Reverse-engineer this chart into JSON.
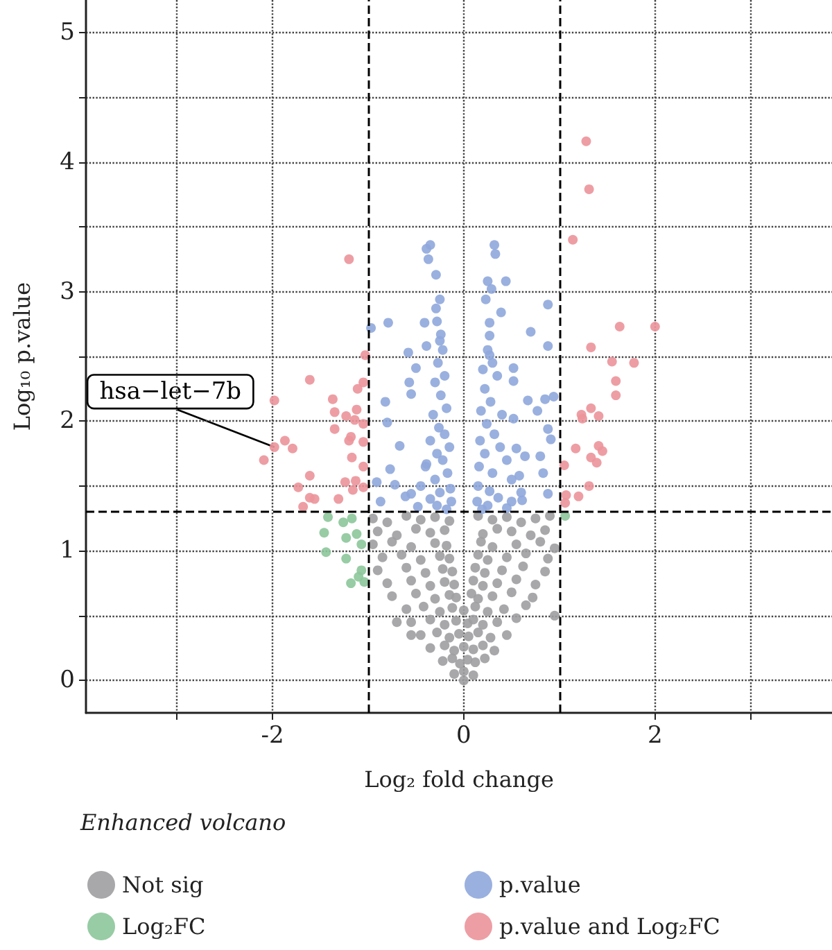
{
  "chart_data": {
    "type": "scatter",
    "xlabel": "Log₂ fold change",
    "ylabel": "Log₁₀ p.value",
    "legend_title": "Enhanced volcano",
    "legend": "bottom",
    "marker": "circle",
    "grid": true,
    "xlim": [
      -3.95,
      3.85
    ],
    "ylim": [
      -0.25,
      5.25
    ],
    "xticks": [
      {
        "value": -3,
        "label": null
      },
      -2,
      0,
      2,
      {
        "value": 3,
        "label": null
      }
    ],
    "yticks": [
      0,
      {
        "value": 0.5,
        "label": null
      },
      1,
      {
        "value": 1.5,
        "label": null
      },
      2,
      {
        "value": 2.5,
        "label": null
      },
      3,
      {
        "value": 3.5,
        "label": null
      },
      4,
      {
        "value": 4.5,
        "label": null
      },
      5
    ],
    "ref_lines": [
      {
        "axis": "x",
        "value": -1,
        "line_style": "dashed",
        "color": "#000000"
      },
      {
        "axis": "x",
        "value": 1,
        "line_style": "dashed",
        "color": "#000000"
      },
      {
        "axis": "y",
        "value": 1.3,
        "line_style": "dashed",
        "color": "#000000"
      }
    ],
    "annotations": [
      {
        "text": "hsa−let−7b",
        "x": -1.98,
        "y": 1.8
      }
    ],
    "series": [
      {
        "name": "Not sig",
        "color": "#9e9ea2",
        "x": [
          -0.95,
          -0.8,
          -0.6,
          -0.45,
          -0.3,
          -0.15,
          0.15,
          0.3,
          0.45,
          0.6,
          0.75,
          0.9,
          -0.9,
          -0.7,
          -0.5,
          -0.35,
          -0.2,
          0.2,
          0.35,
          0.5,
          0.7,
          0.85,
          -0.95,
          -0.75,
          -0.55,
          -0.3,
          -0.18,
          0.18,
          0.3,
          0.55,
          0.8,
          0.95,
          -0.85,
          -0.65,
          -0.45,
          -0.25,
          -0.15,
          0.15,
          0.25,
          0.45,
          0.65,
          0.88,
          -0.9,
          -0.6,
          -0.4,
          -0.22,
          -0.12,
          0.12,
          0.22,
          0.4,
          0.62,
          0.85,
          -0.8,
          -0.55,
          -0.35,
          -0.2,
          -0.1,
          0.1,
          0.2,
          0.35,
          0.55,
          0.75,
          -0.75,
          -0.5,
          -0.3,
          -0.15,
          -0.08,
          0.08,
          0.15,
          0.3,
          0.5,
          0.72,
          -0.6,
          -0.42,
          -0.25,
          -0.12,
          0,
          0.12,
          0.25,
          0.42,
          0.65,
          -0.55,
          -0.35,
          -0.2,
          -0.08,
          0.04,
          0.1,
          0.2,
          0.35,
          0.55,
          -0.45,
          -0.28,
          -0.15,
          -0.05,
          0.05,
          0.15,
          0.28,
          0.45,
          -0.35,
          -0.2,
          -0.1,
          0,
          0.1,
          0.2,
          0.32,
          -0.22,
          -0.12,
          -0.04,
          0.04,
          0.12,
          0.22,
          -0.1,
          0,
          0.1,
          0,
          0.95,
          -0.7,
          -0.55
        ],
        "values": [
          1.25,
          1.22,
          1.27,
          1.24,
          1.26,
          1.23,
          1.27,
          1.24,
          1.26,
          1.22,
          1.25,
          1.27,
          1.15,
          1.12,
          1.17,
          1.14,
          1.16,
          1.13,
          1.17,
          1.15,
          1.12,
          1.16,
          1.05,
          1.07,
          1.03,
          1.06,
          1.04,
          1.07,
          1.03,
          1.05,
          1.07,
          1.02,
          0.95,
          0.97,
          0.93,
          0.96,
          0.94,
          0.97,
          0.93,
          0.95,
          0.98,
          0.94,
          0.85,
          0.87,
          0.83,
          0.86,
          0.84,
          0.87,
          0.83,
          0.85,
          0.88,
          0.84,
          0.75,
          0.77,
          0.73,
          0.76,
          0.74,
          0.77,
          0.73,
          0.75,
          0.78,
          0.74,
          0.65,
          0.67,
          0.63,
          0.66,
          0.64,
          0.67,
          0.63,
          0.65,
          0.68,
          0.64,
          0.55,
          0.57,
          0.53,
          0.56,
          0.54,
          0.57,
          0.53,
          0.55,
          0.58,
          0.45,
          0.47,
          0.43,
          0.46,
          0.44,
          0.47,
          0.43,
          0.45,
          0.48,
          0.35,
          0.37,
          0.33,
          0.36,
          0.34,
          0.37,
          0.33,
          0.35,
          0.25,
          0.27,
          0.23,
          0.26,
          0.24,
          0.27,
          0.23,
          0.15,
          0.17,
          0.13,
          0.16,
          0.14,
          0.17,
          0.05,
          0.07,
          0.04,
          0,
          0.5,
          0.45,
          0.35
        ]
      },
      {
        "name": "Log₂FC",
        "color": "#8cc79a",
        "x": [
          -1.42,
          -1.26,
          -1.17,
          -1.46,
          -1.23,
          -1.12,
          -1.07,
          -1.44,
          -1.23,
          -1.07,
          -1.1,
          -1.18,
          -1.04,
          1.06
        ],
        "values": [
          1.26,
          1.22,
          1.25,
          1.14,
          1.1,
          1.13,
          1.05,
          0.99,
          0.94,
          0.85,
          0.8,
          0.75,
          0.76,
          1.27
        ]
      },
      {
        "name": "p.value",
        "color": "#8fa7dc",
        "x": [
          -0.35,
          -0.39,
          -0.37,
          -0.29,
          -0.25,
          -0.29,
          -0.28,
          -0.79,
          -0.97,
          -0.41,
          -0.24,
          -0.25,
          -0.39,
          -0.58,
          -0.5,
          -0.57,
          -0.55,
          -0.82,
          -0.8,
          -0.67,
          -0.77,
          -0.91,
          -0.72,
          -0.87,
          -0.61,
          -0.39,
          0.32,
          0.33,
          0.25,
          0.44,
          0.29,
          0.23,
          0.39,
          0.88,
          0.27,
          0.7,
          0.27,
          0.88,
          0.27,
          0.52,
          0.52,
          0.94,
          0.85,
          0.67,
          0.77,
          0.52,
          0.88,
          0.55,
          0.8,
          0.64,
          0.91,
          0.83,
          0.58,
          0.88,
          0.61,
          0.5,
          -0.22,
          -0.27,
          -0.2,
          -0.3,
          -0.24,
          -0.18,
          -0.32,
          -0.26,
          -0.2,
          -0.35,
          -0.15,
          -0.28,
          -0.22,
          -0.4,
          -0.17,
          -0.3,
          -0.45,
          -0.14,
          -0.25,
          -0.55,
          -0.35,
          -0.13,
          -0.28,
          -0.48,
          -0.18,
          0.25,
          0.3,
          0.2,
          0.35,
          0.22,
          0.28,
          0.18,
          0.4,
          0.24,
          0.32,
          0.17,
          0.38,
          0.22,
          0.45,
          0.16,
          0.3,
          0.5,
          0.15,
          0.27,
          0.6,
          0.36,
          0.14,
          0.25,
          0.45,
          0.19
        ],
        "values": [
          3.36,
          3.33,
          3.25,
          3.13,
          2.94,
          2.87,
          2.77,
          2.76,
          2.72,
          2.76,
          2.67,
          2.62,
          2.58,
          2.53,
          2.41,
          2.3,
          2.21,
          2.15,
          1.99,
          1.81,
          1.63,
          1.53,
          1.51,
          1.38,
          1.42,
          1.67,
          3.36,
          3.29,
          3.08,
          3.08,
          3.02,
          2.94,
          2.84,
          2.9,
          2.76,
          2.69,
          2.66,
          2.58,
          2.51,
          2.41,
          2.31,
          2.19,
          2.17,
          2.16,
          2.08,
          2.02,
          1.94,
          1.79,
          1.73,
          1.73,
          1.86,
          1.6,
          1.58,
          1.44,
          1.39,
          1.38,
          2.55,
          2.45,
          2.35,
          2.3,
          2.2,
          2.1,
          2.05,
          1.95,
          1.9,
          1.85,
          1.8,
          1.75,
          1.7,
          1.65,
          1.6,
          1.55,
          1.5,
          1.48,
          1.45,
          1.44,
          1.4,
          1.38,
          1.35,
          1.34,
          1.32,
          2.55,
          2.45,
          2.4,
          2.35,
          2.25,
          2.15,
          2.08,
          2.05,
          1.98,
          1.9,
          1.85,
          1.8,
          1.75,
          1.7,
          1.65,
          1.6,
          1.55,
          1.5,
          1.46,
          1.45,
          1.41,
          1.38,
          1.35,
          1.33,
          1.32
        ]
      },
      {
        "name": "p.value and Log₂FC",
        "color": "#eb949a",
        "x": [
          1.28,
          1.31,
          1.14,
          1.63,
          2,
          1.33,
          1.55,
          1.78,
          1.59,
          1.59,
          1.33,
          1.23,
          1.24,
          1.41,
          1.41,
          1.45,
          1.17,
          1.33,
          1.39,
          1.05,
          1.31,
          1.07,
          1.2,
          1.06,
          -1.2,
          -1.03,
          -1.61,
          -1.05,
          -1.11,
          -1.98,
          -1.37,
          -1.12,
          -1.35,
          -1.23,
          -1.14,
          -1.35,
          -1.05,
          -1.18,
          -1.2,
          -1.05,
          -1.87,
          -1.98,
          -1.79,
          -1.17,
          -2.09,
          -1.05,
          -1.61,
          -1.24,
          -1.13,
          -1.05,
          -1.73,
          -1.16,
          -1.61,
          -1.56,
          -1.31,
          -1.68
        ],
        "values": [
          4.16,
          3.79,
          3.4,
          2.73,
          2.73,
          2.57,
          2.46,
          2.45,
          2.31,
          2.2,
          2.1,
          2.05,
          2.02,
          2.04,
          1.81,
          1.77,
          1.79,
          1.72,
          1.68,
          1.66,
          1.5,
          1.43,
          1.42,
          1.37,
          3.25,
          2.51,
          2.32,
          2.3,
          2.25,
          2.16,
          2.17,
          2.09,
          2.07,
          2.04,
          2.01,
          1.94,
          1.98,
          1.88,
          1.85,
          1.84,
          1.85,
          1.8,
          1.79,
          1.72,
          1.7,
          1.65,
          1.58,
          1.53,
          1.54,
          1.49,
          1.49,
          1.47,
          1.41,
          1.4,
          1.4,
          1.34
        ]
      }
    ]
  }
}
